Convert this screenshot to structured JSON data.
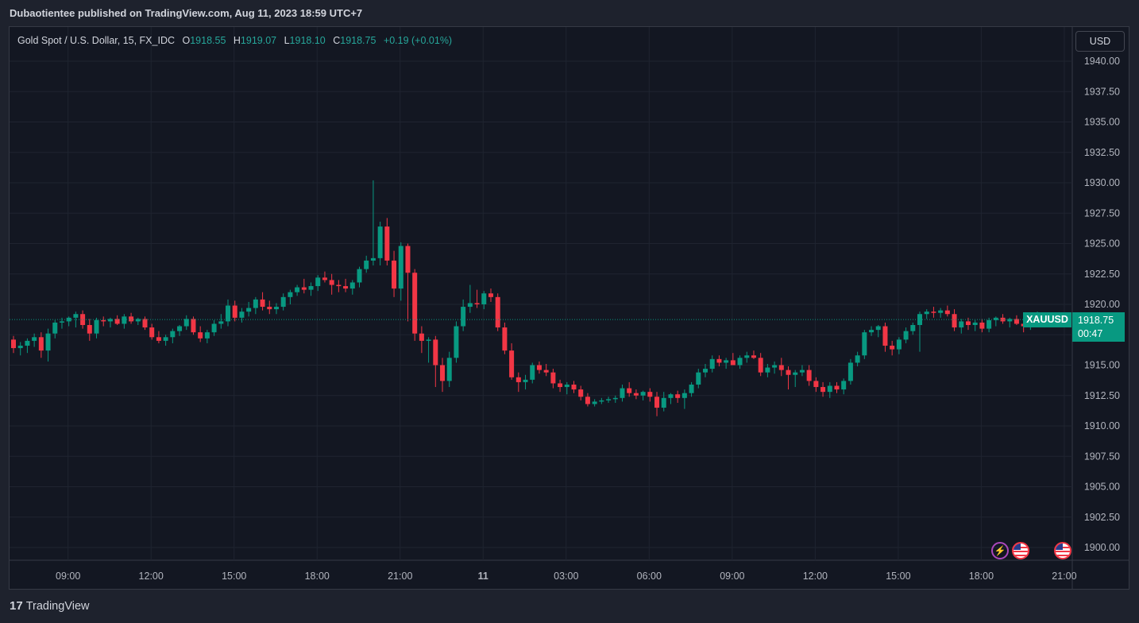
{
  "header": {
    "publisher": "Dubaotientee published on TradingView.com, Aug 11, 2023 18:59 UTC+7"
  },
  "legend": {
    "symbol": "Gold Spot / U.S. Dollar, 15, FX_IDC",
    "open_label": "O",
    "open": "1918.55",
    "high_label": "H",
    "high": "1919.07",
    "low_label": "L",
    "low": "1918.10",
    "close_label": "C",
    "close": "1918.75",
    "change": "+0.19 (+0.01%)"
  },
  "currency_button": "USD",
  "last_price": {
    "symbol": "XAUUSD",
    "price": "1918.75",
    "countdown": "00:47",
    "value": 1918.75
  },
  "footer": {
    "logo": "17",
    "brand": "TradingView"
  },
  "icons": [
    "lightning-icon",
    "us-flag-icon",
    "us-flag-icon"
  ],
  "colors": {
    "up": "#089981",
    "down": "#f23645",
    "background": "#131722",
    "grid": "#1f2430"
  },
  "chart_data": {
    "type": "candlestick",
    "y_ticks": [
      "1940.00",
      "1937.50",
      "1935.00",
      "1932.50",
      "1930.00",
      "1927.50",
      "1925.00",
      "1922.50",
      "1920.00",
      "1917.50",
      "1915.00",
      "1912.50",
      "1910.00",
      "1907.50",
      "1905.00",
      "1902.50",
      "1900.00"
    ],
    "ylim": [
      1899.5,
      1940.5
    ],
    "x_tick_labels": [
      "09:00",
      "12:00",
      "15:00",
      "18:00",
      "21:00",
      "11",
      "03:00",
      "06:00",
      "09:00",
      "12:00",
      "15:00",
      "18:00",
      "21:00"
    ],
    "x_tick_bars": [
      8,
      20,
      32,
      44,
      56,
      68,
      80,
      92,
      104,
      116,
      128,
      140,
      152
    ],
    "candles": [
      [
        1917.1,
        1917.4,
        1916.0,
        1916.4
      ],
      [
        1916.4,
        1916.9,
        1915.8,
        1916.6
      ],
      [
        1916.6,
        1917.2,
        1916.0,
        1917.0
      ],
      [
        1917.0,
        1917.6,
        1916.5,
        1917.3
      ],
      [
        1917.3,
        1917.7,
        1915.6,
        1916.2
      ],
      [
        1916.2,
        1918.0,
        1915.3,
        1917.6
      ],
      [
        1917.6,
        1918.7,
        1917.2,
        1918.5
      ],
      [
        1918.5,
        1918.9,
        1918.0,
        1918.6
      ],
      [
        1918.6,
        1919.0,
        1918.2,
        1918.9
      ],
      [
        1918.9,
        1919.4,
        1918.1,
        1919.2
      ],
      [
        1919.2,
        1919.5,
        1918.0,
        1918.3
      ],
      [
        1918.3,
        1918.8,
        1917.0,
        1917.6
      ],
      [
        1917.6,
        1918.9,
        1917.2,
        1918.7
      ],
      [
        1918.7,
        1919.0,
        1918.2,
        1918.6
      ],
      [
        1918.6,
        1918.9,
        1918.1,
        1918.8
      ],
      [
        1918.8,
        1919.1,
        1918.3,
        1918.4
      ],
      [
        1918.4,
        1919.2,
        1918.0,
        1919.0
      ],
      [
        1919.0,
        1919.3,
        1918.4,
        1918.6
      ],
      [
        1918.6,
        1918.9,
        1918.3,
        1918.8
      ],
      [
        1918.8,
        1919.0,
        1917.9,
        1918.1
      ],
      [
        1918.1,
        1918.4,
        1917.1,
        1917.3
      ],
      [
        1917.3,
        1917.8,
        1916.8,
        1917.0
      ],
      [
        1917.0,
        1917.5,
        1916.6,
        1917.3
      ],
      [
        1917.3,
        1918.0,
        1916.8,
        1917.8
      ],
      [
        1917.8,
        1918.3,
        1917.4,
        1918.2
      ],
      [
        1918.2,
        1919.1,
        1917.9,
        1918.8
      ],
      [
        1918.8,
        1919.0,
        1917.5,
        1917.7
      ],
      [
        1917.7,
        1918.2,
        1916.9,
        1917.2
      ],
      [
        1917.2,
        1917.9,
        1916.8,
        1917.7
      ],
      [
        1917.7,
        1918.7,
        1917.4,
        1918.4
      ],
      [
        1918.4,
        1919.2,
        1918.0,
        1918.6
      ],
      [
        1918.6,
        1920.4,
        1918.2,
        1919.9
      ],
      [
        1919.9,
        1920.3,
        1918.6,
        1918.9
      ],
      [
        1918.9,
        1919.7,
        1918.5,
        1919.4
      ],
      [
        1919.4,
        1920.2,
        1919.0,
        1919.7
      ],
      [
        1919.7,
        1920.6,
        1919.2,
        1920.4
      ],
      [
        1920.4,
        1921.0,
        1919.5,
        1919.8
      ],
      [
        1919.8,
        1920.3,
        1919.2,
        1919.6
      ],
      [
        1919.6,
        1920.1,
        1919.2,
        1919.8
      ],
      [
        1919.8,
        1920.9,
        1919.5,
        1920.6
      ],
      [
        1920.6,
        1921.2,
        1920.0,
        1921.0
      ],
      [
        1921.0,
        1921.6,
        1920.7,
        1921.4
      ],
      [
        1921.4,
        1922.1,
        1920.9,
        1921.2
      ],
      [
        1921.2,
        1921.8,
        1920.7,
        1921.5
      ],
      [
        1921.5,
        1922.4,
        1921.1,
        1922.2
      ],
      [
        1922.2,
        1922.7,
        1921.8,
        1922.0
      ],
      [
        1922.0,
        1922.5,
        1920.8,
        1921.6
      ],
      [
        1921.6,
        1922.0,
        1921.0,
        1921.5
      ],
      [
        1921.5,
        1922.1,
        1921.0,
        1921.3
      ],
      [
        1921.3,
        1922.0,
        1920.8,
        1921.8
      ],
      [
        1921.8,
        1923.1,
        1921.4,
        1922.9
      ],
      [
        1922.9,
        1924.0,
        1922.6,
        1923.6
      ],
      [
        1923.6,
        1930.2,
        1923.2,
        1923.8
      ],
      [
        1923.8,
        1926.8,
        1923.2,
        1926.4
      ],
      [
        1926.4,
        1927.1,
        1923.2,
        1923.6
      ],
      [
        1923.6,
        1924.4,
        1920.6,
        1921.3
      ],
      [
        1921.3,
        1925.1,
        1920.3,
        1924.8
      ],
      [
        1924.8,
        1925.0,
        1918.6,
        1922.6
      ],
      [
        1922.6,
        1922.9,
        1917.0,
        1917.6
      ],
      [
        1917.6,
        1918.2,
        1916.0,
        1917.0
      ],
      [
        1917.0,
        1917.3,
        1915.2,
        1917.1
      ],
      [
        1917.1,
        1917.4,
        1913.2,
        1915.0
      ],
      [
        1915.0,
        1915.6,
        1912.8,
        1913.7
      ],
      [
        1913.7,
        1916.1,
        1913.2,
        1915.6
      ],
      [
        1915.6,
        1918.6,
        1915.2,
        1918.2
      ],
      [
        1918.2,
        1920.4,
        1917.8,
        1919.8
      ],
      [
        1919.8,
        1921.6,
        1919.3,
        1920.1
      ],
      [
        1920.1,
        1921.2,
        1919.7,
        1920.0
      ],
      [
        1920.0,
        1921.1,
        1919.6,
        1920.9
      ],
      [
        1920.9,
        1921.3,
        1920.2,
        1920.6
      ],
      [
        1920.6,
        1920.9,
        1917.8,
        1918.1
      ],
      [
        1918.1,
        1918.5,
        1915.9,
        1916.2
      ],
      [
        1916.2,
        1916.8,
        1913.8,
        1914.0
      ],
      [
        1914.0,
        1914.4,
        1912.8,
        1913.6
      ],
      [
        1913.6,
        1914.2,
        1913.0,
        1913.8
      ],
      [
        1913.8,
        1915.2,
        1913.5,
        1915.0
      ],
      [
        1915.0,
        1915.3,
        1914.3,
        1914.6
      ],
      [
        1914.6,
        1915.1,
        1914.1,
        1914.4
      ],
      [
        1914.4,
        1914.7,
        1913.1,
        1913.5
      ],
      [
        1913.5,
        1913.8,
        1912.8,
        1913.2
      ],
      [
        1913.2,
        1913.6,
        1912.6,
        1913.4
      ],
      [
        1913.4,
        1913.7,
        1912.7,
        1913.0
      ],
      [
        1913.0,
        1913.3,
        1912.1,
        1912.4
      ],
      [
        1912.4,
        1912.7,
        1911.6,
        1911.8
      ],
      [
        1911.8,
        1912.2,
        1911.6,
        1912.0
      ],
      [
        1912.0,
        1912.3,
        1911.8,
        1912.1
      ],
      [
        1912.1,
        1912.4,
        1911.9,
        1912.2
      ],
      [
        1912.2,
        1912.5,
        1911.9,
        1912.3
      ],
      [
        1912.3,
        1913.4,
        1912.0,
        1913.1
      ],
      [
        1913.1,
        1913.6,
        1912.4,
        1912.7
      ],
      [
        1912.7,
        1913.0,
        1912.2,
        1912.5
      ],
      [
        1912.5,
        1912.9,
        1912.1,
        1912.8
      ],
      [
        1912.8,
        1913.1,
        1912.0,
        1912.4
      ],
      [
        1912.4,
        1912.8,
        1910.8,
        1911.5
      ],
      [
        1911.5,
        1912.8,
        1911.2,
        1912.3
      ],
      [
        1912.3,
        1912.7,
        1911.8,
        1912.6
      ],
      [
        1912.6,
        1912.9,
        1911.9,
        1912.3
      ],
      [
        1912.3,
        1913.0,
        1911.4,
        1912.7
      ],
      [
        1912.7,
        1913.6,
        1912.4,
        1913.4
      ],
      [
        1913.4,
        1914.7,
        1913.1,
        1914.4
      ],
      [
        1914.4,
        1915.1,
        1914.0,
        1914.7
      ],
      [
        1914.7,
        1915.8,
        1914.4,
        1915.5
      ],
      [
        1915.5,
        1915.8,
        1914.9,
        1915.2
      ],
      [
        1915.2,
        1915.6,
        1914.7,
        1915.4
      ],
      [
        1915.4,
        1916.0,
        1915.0,
        1915.0
      ],
      [
        1915.0,
        1915.8,
        1914.7,
        1915.6
      ],
      [
        1915.6,
        1916.1,
        1915.2,
        1915.8
      ],
      [
        1915.8,
        1916.2,
        1915.5,
        1915.6
      ],
      [
        1915.6,
        1916.0,
        1914.1,
        1914.4
      ],
      [
        1914.4,
        1915.1,
        1914.0,
        1914.8
      ],
      [
        1914.8,
        1915.3,
        1914.3,
        1915.0
      ],
      [
        1915.0,
        1915.6,
        1914.1,
        1914.6
      ],
      [
        1914.6,
        1914.9,
        1913.0,
        1914.2
      ],
      [
        1914.2,
        1914.6,
        1913.2,
        1914.4
      ],
      [
        1914.4,
        1915.0,
        1914.1,
        1914.6
      ],
      [
        1914.6,
        1915.0,
        1913.3,
        1913.7
      ],
      [
        1913.7,
        1914.0,
        1912.8,
        1913.2
      ],
      [
        1913.2,
        1913.6,
        1912.4,
        1912.8
      ],
      [
        1912.8,
        1913.6,
        1912.3,
        1913.3
      ],
      [
        1913.3,
        1913.6,
        1912.7,
        1913.0
      ],
      [
        1913.0,
        1913.9,
        1912.6,
        1913.7
      ],
      [
        1913.7,
        1915.5,
        1913.4,
        1915.2
      ],
      [
        1915.2,
        1916.1,
        1914.9,
        1915.8
      ],
      [
        1915.8,
        1917.9,
        1915.5,
        1917.7
      ],
      [
        1917.7,
        1918.2,
        1917.4,
        1917.9
      ],
      [
        1917.9,
        1918.3,
        1917.3,
        1918.2
      ],
      [
        1918.2,
        1918.5,
        1916.1,
        1916.6
      ],
      [
        1916.6,
        1917.0,
        1915.8,
        1916.3
      ],
      [
        1916.3,
        1917.3,
        1915.9,
        1917.1
      ],
      [
        1917.1,
        1918.1,
        1916.8,
        1917.8
      ],
      [
        1917.8,
        1918.5,
        1917.5,
        1918.3
      ],
      [
        1918.3,
        1919.4,
        1916.1,
        1919.2
      ],
      [
        1919.2,
        1919.6,
        1918.8,
        1919.4
      ],
      [
        1919.4,
        1919.8,
        1918.9,
        1919.3
      ],
      [
        1919.3,
        1919.7,
        1918.9,
        1919.5
      ],
      [
        1919.5,
        1919.9,
        1919.0,
        1919.2
      ],
      [
        1919.2,
        1919.6,
        1917.8,
        1918.1
      ],
      [
        1918.1,
        1918.8,
        1917.6,
        1918.6
      ],
      [
        1918.6,
        1918.9,
        1917.9,
        1918.3
      ],
      [
        1918.3,
        1918.7,
        1917.8,
        1918.5
      ],
      [
        1918.5,
        1918.8,
        1917.7,
        1918.0
      ],
      [
        1918.0,
        1918.9,
        1917.7,
        1918.7
      ],
      [
        1918.7,
        1919.0,
        1918.2,
        1918.9
      ],
      [
        1918.9,
        1919.2,
        1918.4,
        1918.6
      ],
      [
        1918.6,
        1918.9,
        1918.1,
        1918.8
      ],
      [
        1918.8,
        1919.1,
        1918.3,
        1918.4
      ],
      [
        1918.4,
        1918.7,
        1917.7,
        1918.2
      ],
      [
        1918.2,
        1919.3,
        1917.9,
        1919.1
      ],
      [
        1919.1,
        1919.4,
        1918.8,
        1919.2
      ],
      [
        1918.55,
        1919.07,
        1918.1,
        1918.75
      ]
    ]
  }
}
